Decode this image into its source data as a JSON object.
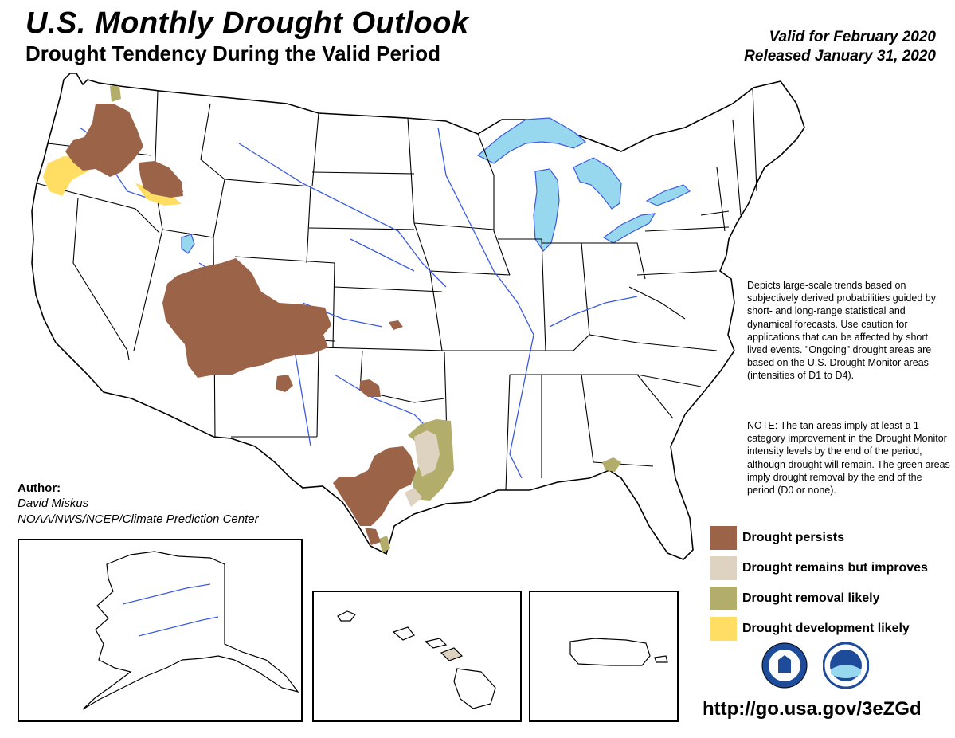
{
  "header": {
    "title": "U.S. Monthly Drought Outlook",
    "subtitle": "Drought Tendency During the Valid Period",
    "valid": "Valid for February 2020",
    "released": "Released January 31, 2020"
  },
  "description": "Depicts large-scale trends based on subjectively derived probabilities guided by short- and long-range statistical and dynamical forecasts. Use caution for applications that can be affected by short lived events. \"Ongoing\" drought areas are based on the U.S. Drought Monitor areas (intensities of D1 to D4).",
  "note": "NOTE: The tan areas imply at least a 1-category improvement in the Drought Monitor intensity levels by the end of the period, although drought will remain. The green areas imply drought removal by the end of the period (D0 or none).",
  "legend": [
    {
      "label": "Drought persists",
      "color": "#9b6449"
    },
    {
      "label": "Drought remains but improves",
      "color": "#ded3c1"
    },
    {
      "label": "Drought removal likely",
      "color": "#b3ad6c"
    },
    {
      "label": "Drought development likely",
      "color": "#ffde63"
    }
  ],
  "author": {
    "heading": "Author:",
    "name": "David Miskus",
    "org": "NOAA/NWS/NCEP/Climate Prediction Center"
  },
  "url": "http://go.usa.gov/3eZGd",
  "colors": {
    "water": "#97d8ef",
    "river": "#3c5be0",
    "outline": "#000000",
    "logo_blue": "#1e4c9a"
  },
  "logos": [
    {
      "name": "NWS",
      "icon": "nws-seal-icon"
    },
    {
      "name": "NOAA",
      "icon": "noaa-seal-icon"
    }
  ]
}
